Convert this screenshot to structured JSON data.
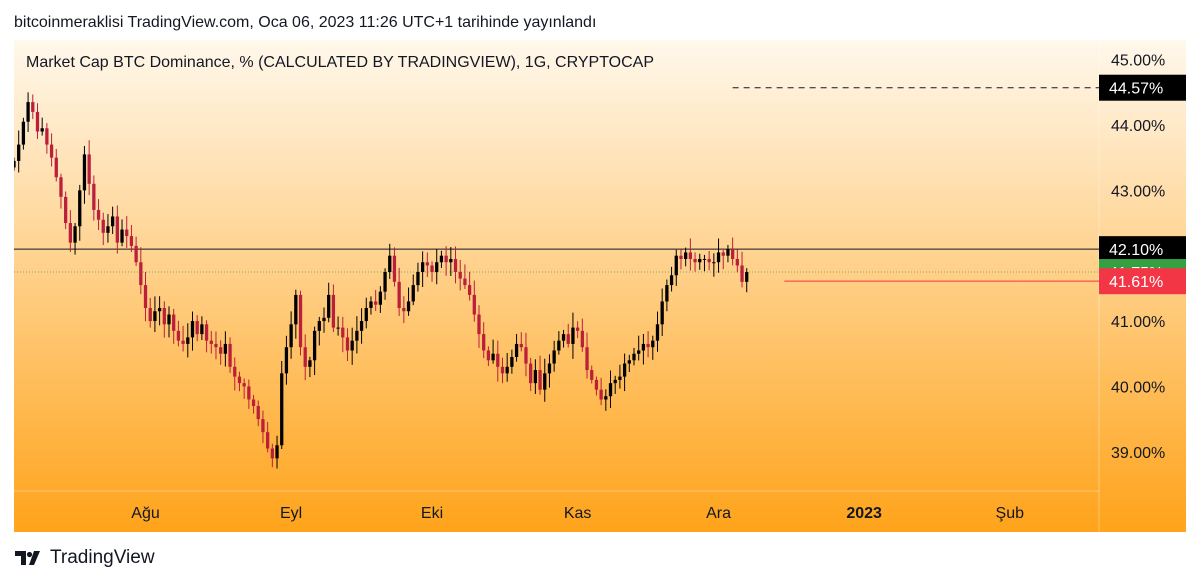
{
  "header": {
    "published": "bitcoinmeraklisi TradingView.com, Oca 06, 2023 11:26 UTC+1 tarihinde yayınlandı"
  },
  "footer": {
    "brand": "TradingView",
    "logo_icon": "tradingview-logo-icon"
  },
  "colors": {
    "bg_top": "#fff8ec",
    "bg_bottom": "#ffa31a",
    "up": "#000000",
    "down": "#bb1f3a",
    "resistance": "#131722",
    "last_price": "#35a041",
    "low_price": "#f23645",
    "dashed_level": "#131722"
  },
  "chart_data": {
    "type": "candlestick",
    "title": "Market Cap BTC Dominance, % (CALCULATED BY TRADINGVIEW), 1G, CRYPTOCAP",
    "ylabel": "",
    "xlabel": "",
    "ylim": [
      38.4,
      45.3
    ],
    "y_ticks": [
      "45.00%",
      "44.00%",
      "43.00%",
      "41.00%",
      "40.00%",
      "39.00%"
    ],
    "y_tick_values": [
      45,
      44,
      43,
      41,
      40,
      39
    ],
    "x_ticks": [
      {
        "label": "Ağu",
        "date": "2022-08-01",
        "bold": false
      },
      {
        "label": "Eyl",
        "date": "2022-09-01",
        "bold": false
      },
      {
        "label": "Eki",
        "date": "2022-10-01",
        "bold": false
      },
      {
        "label": "Kas",
        "date": "2022-11-01",
        "bold": false
      },
      {
        "label": "Ara",
        "date": "2022-12-01",
        "bold": false
      },
      {
        "label": "2023",
        "date": "2023-01-01",
        "bold": true
      },
      {
        "label": "Şub",
        "date": "2023-02-01",
        "bold": false
      }
    ],
    "xlim": [
      "2022-07-04",
      "2023-02-20"
    ],
    "levels": [
      {
        "name": "resistance",
        "value": 42.1,
        "label": "42.10%",
        "style": "solid",
        "from": "2022-07-04"
      },
      {
        "name": "last_price",
        "value": 41.75,
        "label": "41.75%",
        "style": "dotted",
        "from": "2022-07-04"
      },
      {
        "name": "low_price",
        "value": 41.61,
        "label": "41.61%",
        "style": "solid",
        "from": "2022-12-15"
      },
      {
        "name": "dashed_level",
        "value": 44.57,
        "label": "44.57%",
        "style": "dashed",
        "from": "2022-12-04"
      }
    ],
    "start_date": "2022-07-04",
    "closes": [
      43.45,
      43.7,
      44.05,
      44.35,
      44.2,
      43.9,
      43.95,
      43.7,
      43.5,
      43.2,
      42.9,
      42.5,
      42.2,
      42.45,
      43.0,
      43.55,
      43.1,
      42.7,
      42.55,
      42.35,
      42.45,
      42.6,
      42.2,
      42.4,
      42.3,
      42.15,
      41.9,
      41.55,
      41.2,
      41.0,
      41.15,
      41.2,
      40.95,
      41.1,
      40.85,
      40.7,
      40.65,
      40.75,
      41.0,
      40.8,
      40.95,
      40.7,
      40.65,
      40.6,
      40.5,
      40.65,
      40.3,
      40.15,
      40.05,
      40.0,
      39.8,
      39.7,
      39.5,
      39.3,
      39.05,
      38.9,
      39.1,
      40.2,
      40.6,
      40.95,
      41.4,
      40.6,
      40.3,
      40.4,
      40.85,
      41.0,
      41.05,
      41.4,
      40.9,
      40.9,
      40.75,
      40.55,
      40.7,
      40.85,
      41.0,
      41.2,
      41.3,
      41.25,
      41.45,
      41.75,
      42.0,
      41.6,
      41.2,
      41.15,
      41.3,
      41.55,
      41.75,
      41.9,
      41.85,
      41.75,
      41.9,
      42.0,
      41.9,
      41.95,
      41.75,
      41.65,
      41.55,
      41.4,
      41.1,
      40.8,
      40.55,
      40.4,
      40.5,
      40.3,
      40.2,
      40.3,
      40.45,
      40.65,
      40.6,
      40.35,
      40.05,
      40.25,
      39.95,
      40.2,
      40.35,
      40.55,
      40.7,
      40.8,
      40.65,
      40.9,
      40.85,
      40.6,
      40.25,
      40.1,
      39.95,
      39.8,
      39.85,
      40.05,
      40.1,
      40.15,
      40.35,
      40.4,
      40.5,
      40.55,
      40.65,
      40.6,
      40.7,
      40.95,
      41.3,
      41.55,
      41.7,
      42.0,
      41.95,
      42.05,
      41.95,
      41.9,
      41.95,
      41.95,
      41.9,
      41.9,
      42.05,
      42.0,
      42.1,
      41.95,
      41.85,
      41.6,
      41.75
    ],
    "ohlc_note": "daily candles; opens = previous close, wicks estimated"
  }
}
